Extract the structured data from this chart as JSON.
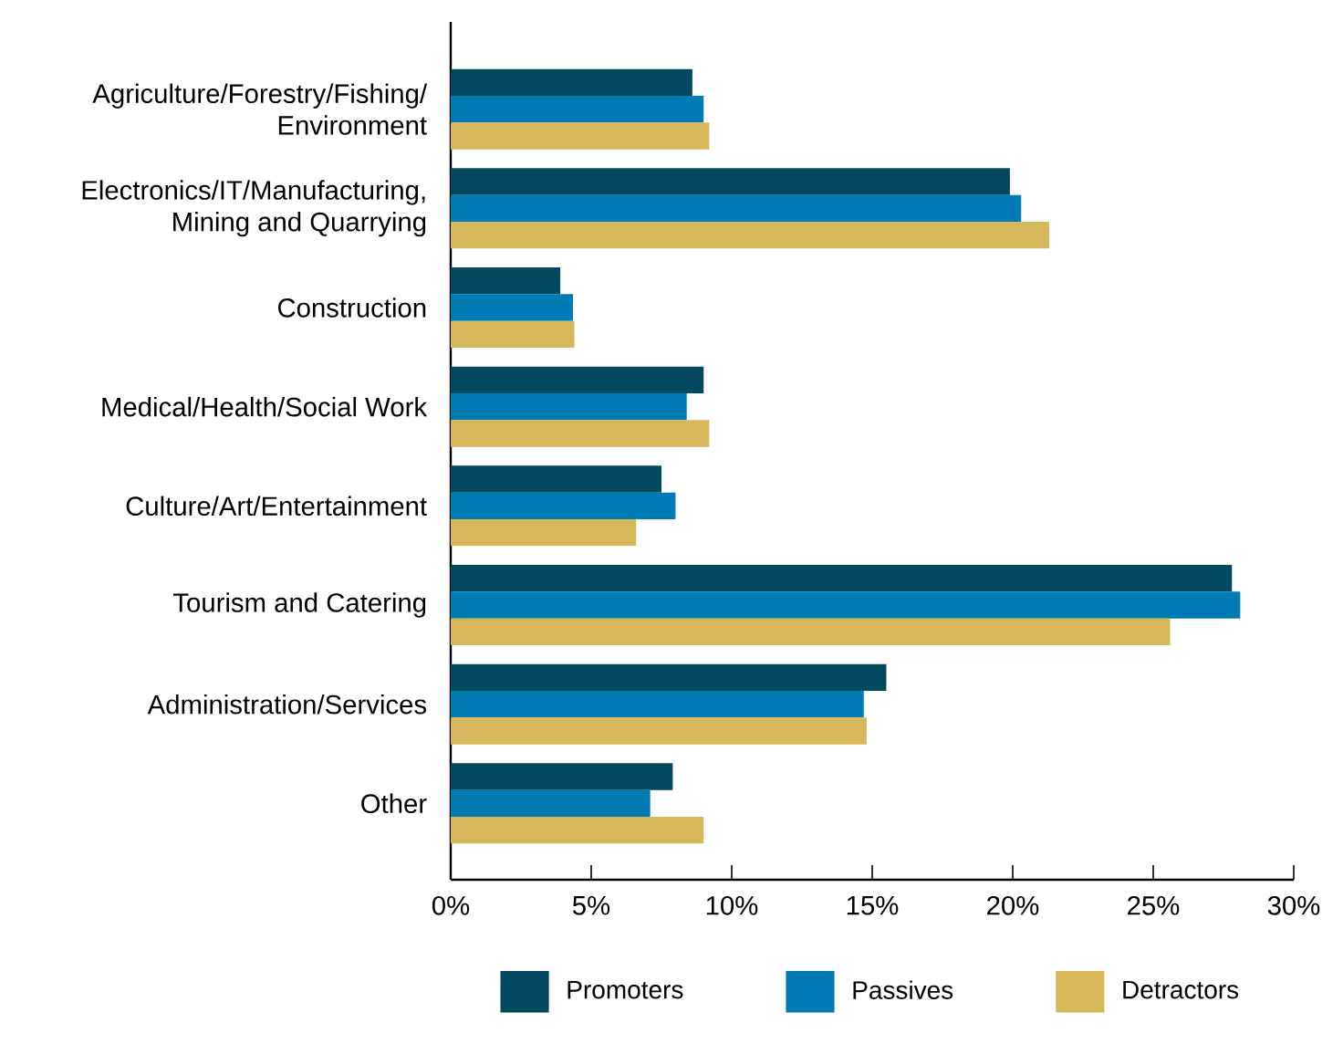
{
  "chart_data": {
    "type": "bar",
    "orientation": "horizontal",
    "categories": [
      "Agriculture/Forestry/Fishing/ Environment",
      "Electronics/IT/Manufacturing, Mining and Quarrying",
      "Construction",
      "Medical/Health/Social Work",
      "Culture/Art/Entertainment",
      "Tourism and Catering",
      "Administration/Services",
      "Other"
    ],
    "series": [
      {
        "name": "Promoters",
        "color": "#02485f",
        "values": [
          8.6,
          19.9,
          3.9,
          9.0,
          7.5,
          27.8,
          15.5,
          7.9
        ]
      },
      {
        "name": "Passives",
        "color": "#007bb3",
        "values": [
          9.0,
          20.3,
          4.35,
          8.4,
          8.0,
          28.1,
          14.7,
          7.1
        ]
      },
      {
        "name": "Detractors",
        "color": "#d6b85a",
        "values": [
          9.2,
          21.3,
          4.4,
          9.2,
          6.6,
          25.6,
          14.8,
          9.0
        ]
      }
    ],
    "xlim": [
      0,
      30
    ],
    "xticks": [
      {
        "value": 0,
        "label": "0%"
      },
      {
        "value": 5,
        "label": "5%"
      },
      {
        "value": 10,
        "label": "10%"
      },
      {
        "value": 15,
        "label": "15%"
      },
      {
        "value": 20,
        "label": "20%"
      },
      {
        "value": 25,
        "label": "25%"
      },
      {
        "value": 30,
        "label": "30%"
      }
    ],
    "grid": false,
    "legend": "bottom"
  }
}
